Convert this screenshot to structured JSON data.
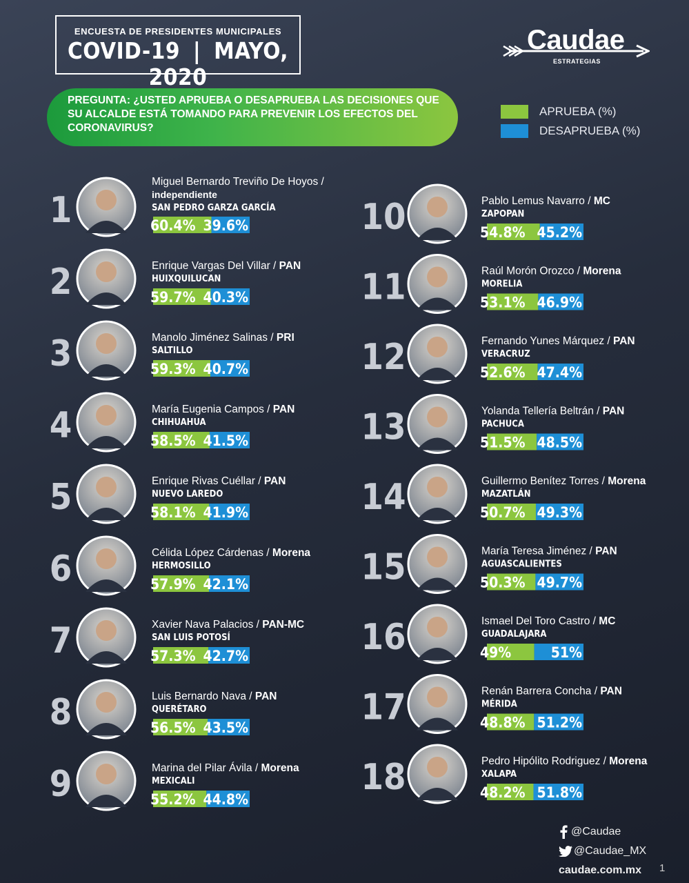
{
  "header": {
    "subtitle": "ENCUESTA DE PRESIDENTES MUNICIPALES",
    "title_left": "COVID-19",
    "title_sep": "|",
    "title_right": "MAYO, 2020"
  },
  "brand": {
    "name": "Caudae",
    "tagline": "ESTRATEGIAS"
  },
  "question": "PREGUNTA: ¿USTED APRUEBA O DESAPRUEBA LAS DECISIONES QUE SU ALCALDE ESTÁ TOMANDO PARA PREVENIR LOS EFECTOS DEL CORONAVIRUS?",
  "legend": {
    "approve": "APRUEBA (%)",
    "disapprove": "DESAPRUEBA (%)"
  },
  "colors": {
    "approve": "#8cc63f",
    "disapprove": "#1e8fd6"
  },
  "chart_data": {
    "type": "bar",
    "orientation": "horizontal-stacked",
    "series": [
      {
        "name": "APRUEBA (%)"
      },
      {
        "name": "DESAPRUEBA (%)"
      }
    ],
    "items": [
      {
        "rank": "1",
        "name": "Miguel Bernardo Treviño De Hoyos /",
        "party": "independiente",
        "city": "SAN PEDRO GARZA GARCÍA",
        "approve": 60.4,
        "disapprove": 39.6,
        "approve_label": "60.4%",
        "disapprove_label": "39.6%"
      },
      {
        "rank": "2",
        "name": "Enrique Vargas Del Villar /",
        "party": "PAN",
        "city": "HUIXQUILUCAN",
        "approve": 59.7,
        "disapprove": 40.3,
        "approve_label": "59.7%",
        "disapprove_label": "40.3%"
      },
      {
        "rank": "3",
        "name": "Manolo Jiménez Salinas /",
        "party": "PRI",
        "city": "SALTILLO",
        "approve": 59.3,
        "disapprove": 40.7,
        "approve_label": "59.3%",
        "disapprove_label": "40.7%"
      },
      {
        "rank": "4",
        "name": "María Eugenia Campos /",
        "party": "PAN",
        "city": "CHIHUAHUA",
        "approve": 58.5,
        "disapprove": 41.5,
        "approve_label": "58.5%",
        "disapprove_label": "41.5%"
      },
      {
        "rank": "5",
        "name": "Enrique Rivas Cuéllar /",
        "party": "PAN",
        "city": "NUEVO LAREDO",
        "approve": 58.1,
        "disapprove": 41.9,
        "approve_label": "58.1%",
        "disapprove_label": "41.9%"
      },
      {
        "rank": "6",
        "name": "Célida López Cárdenas /",
        "party": "Morena",
        "city": "HERMOSILLO",
        "approve": 57.9,
        "disapprove": 42.1,
        "approve_label": "57.9%",
        "disapprove_label": "42.1%"
      },
      {
        "rank": "7",
        "name": "Xavier Nava Palacios /",
        "party": "PAN-MC",
        "city": "SAN LUIS POTOSÍ",
        "approve": 57.3,
        "disapprove": 42.7,
        "approve_label": "57.3%",
        "disapprove_label": "42.7%"
      },
      {
        "rank": "8",
        "name": "Luis Bernardo Nava /",
        "party": "PAN",
        "city": "QUERÉTARO",
        "approve": 56.5,
        "disapprove": 43.5,
        "approve_label": "56.5%",
        "disapprove_label": "43.5%"
      },
      {
        "rank": "9",
        "name": "Marina del Pilar Ávila /",
        "party": "Morena",
        "city": "MEXICALI",
        "approve": 55.2,
        "disapprove": 44.8,
        "approve_label": "55.2%",
        "disapprove_label": "44.8%"
      },
      {
        "rank": "10",
        "name": "Pablo Lemus Navarro /",
        "party": "MC",
        "city": "ZAPOPAN",
        "approve": 54.8,
        "disapprove": 45.2,
        "approve_label": "54.8%",
        "disapprove_label": "45.2%"
      },
      {
        "rank": "11",
        "name": "Raúl Morón Orozco /",
        "party": "Morena",
        "city": "MORELIA",
        "approve": 53.1,
        "disapprove": 46.9,
        "approve_label": "53.1%",
        "disapprove_label": "46.9%"
      },
      {
        "rank": "12",
        "name": "Fernando Yunes Márquez /",
        "party": "PAN",
        "city": "VERACRUZ",
        "approve": 52.6,
        "disapprove": 47.4,
        "approve_label": "52.6%",
        "disapprove_label": "47.4%"
      },
      {
        "rank": "13",
        "name": "Yolanda Tellería Beltrán /",
        "party": "PAN",
        "city": "PACHUCA",
        "approve": 51.5,
        "disapprove": 48.5,
        "approve_label": "51.5%",
        "disapprove_label": "48.5%"
      },
      {
        "rank": "14",
        "name": "Guillermo Benítez Torres /",
        "party": "Morena",
        "city": "MAZATLÁN",
        "approve": 50.7,
        "disapprove": 49.3,
        "approve_label": "50.7%",
        "disapprove_label": "49.3%"
      },
      {
        "rank": "15",
        "name": "María Teresa Jiménez /",
        "party": "PAN",
        "city": "AGUASCALIENTES",
        "approve": 50.3,
        "disapprove": 49.7,
        "approve_label": "50.3%",
        "disapprove_label": "49.7%"
      },
      {
        "rank": "16",
        "name": "Ismael Del Toro Castro /",
        "party": "MC",
        "city": "GUADALAJARA",
        "approve": 49,
        "disapprove": 51,
        "approve_label": "49%",
        "disapprove_label": "51%"
      },
      {
        "rank": "17",
        "name": "Renán Barrera Concha /",
        "party": "PAN",
        "city": "MÉRIDA",
        "approve": 48.8,
        "disapprove": 51.2,
        "approve_label": "48.8%",
        "disapprove_label": "51.2%"
      },
      {
        "rank": "18",
        "name": "Pedro Hipólito Rodriguez /",
        "party": "Morena",
        "city": "XALAPA",
        "approve": 48.2,
        "disapprove": 51.8,
        "approve_label": "48.2%",
        "disapprove_label": "51.8%"
      }
    ]
  },
  "footer": {
    "facebook": "@Caudae",
    "twitter": "@Caudae_MX",
    "website": "caudae.com.mx",
    "page": "1",
    "facebook_icon": "facebook-icon",
    "twitter_icon": "twitter-icon"
  }
}
